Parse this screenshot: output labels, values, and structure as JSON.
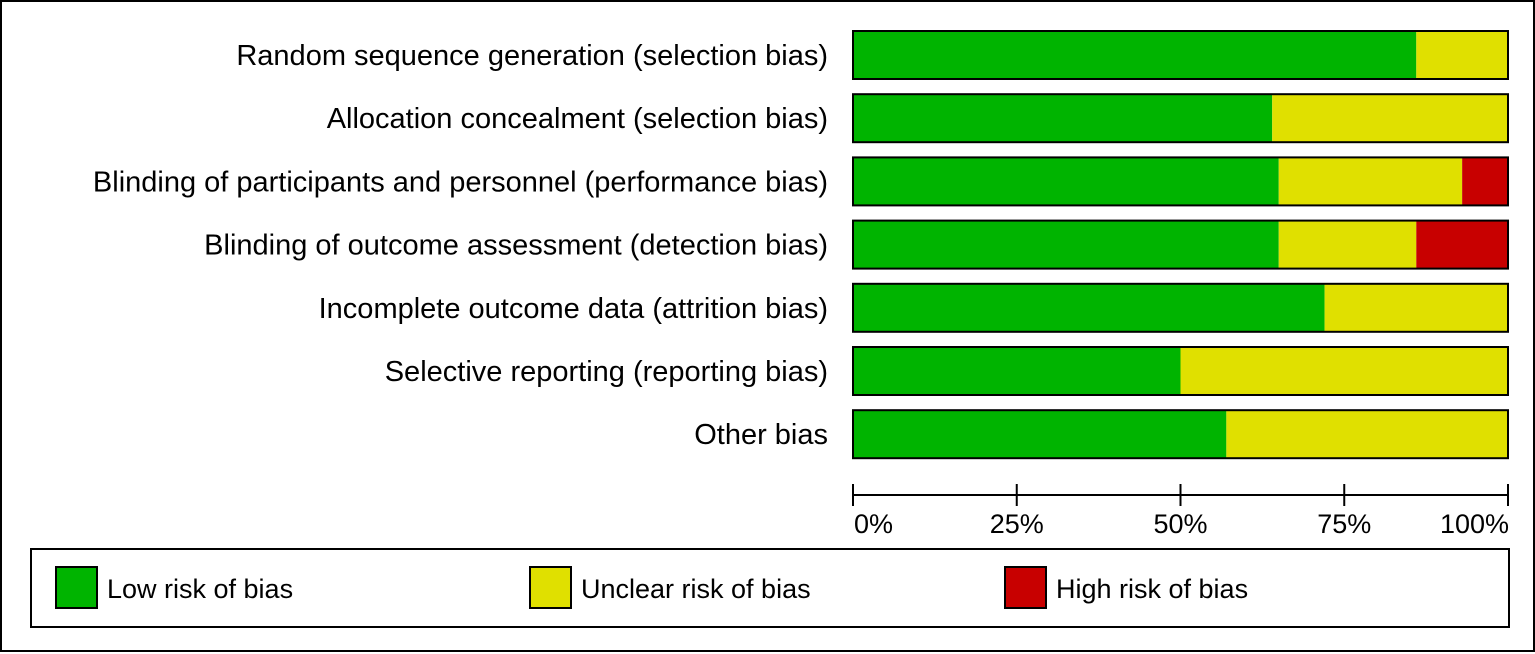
{
  "chart_data": {
    "type": "bar",
    "orientation": "horizontal",
    "stacked": true,
    "percent": true,
    "categories": [
      "Random sequence generation (selection bias)",
      "Allocation concealment (selection bias)",
      "Blinding of participants and personnel (performance bias)",
      "Blinding of outcome assessment (detection bias)",
      "Incomplete outcome data (attrition bias)",
      "Selective reporting (reporting bias)",
      "Other bias"
    ],
    "series": [
      {
        "name": "Low risk of bias",
        "color": "#00b400",
        "values": [
          86,
          64,
          65,
          65,
          72,
          50,
          57
        ]
      },
      {
        "name": "Unclear risk of bias",
        "color": "#e0e000",
        "values": [
          14,
          36,
          28,
          21,
          28,
          50,
          43
        ]
      },
      {
        "name": "High risk of bias",
        "color": "#c80000",
        "values": [
          0,
          0,
          7,
          14,
          0,
          0,
          0
        ]
      }
    ],
    "xlim": [
      0,
      100
    ],
    "x_ticks": [
      0,
      25,
      50,
      75,
      100
    ],
    "x_tick_labels": [
      "0%",
      "25%",
      "50%",
      "75%",
      "100%"
    ],
    "grid": false,
    "legend_position": "bottom"
  }
}
